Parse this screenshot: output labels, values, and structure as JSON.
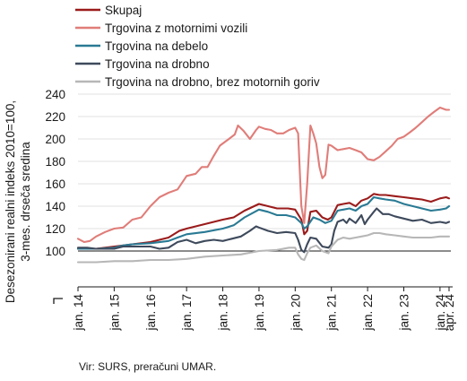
{
  "chart_data": {
    "type": "line",
    "ylabel_lines": [
      "Desezonirani realni indeks 2010=100,",
      "3-mes. drseča sredina"
    ],
    "ylim": [
      80,
      240
    ],
    "yticks": [
      100,
      120,
      140,
      160,
      180,
      200,
      220,
      240
    ],
    "y_axis_break": true,
    "x_tick_labels": [
      "jan. 14",
      "jan. 15",
      "jan. 16",
      "jan. 17",
      "jan. 18",
      "jan. 19",
      "jan. 20",
      "jan. 21",
      "jan. 22",
      "jan. 23",
      "jan. 24",
      "apr. 24"
    ],
    "x_tick_positions": [
      2014.0,
      2015.0,
      2016.0,
      2017.0,
      2018.0,
      2019.0,
      2020.0,
      2021.0,
      2022.0,
      2023.0,
      2024.0,
      2024.25
    ],
    "xlim": [
      2014.0,
      2024.3
    ],
    "grid": "horizontal",
    "legend_position": "top-left",
    "source": "Vir: SURS, preračuni UMAR.",
    "series": [
      {
        "name": "Skupaj",
        "color": "#9b1b1b",
        "points": [
          [
            2014.0,
            102
          ],
          [
            2014.5,
            102
          ],
          [
            2015.0,
            104
          ],
          [
            2015.5,
            106
          ],
          [
            2016.0,
            108
          ],
          [
            2016.5,
            112
          ],
          [
            2016.8,
            118
          ],
          [
            2017.0,
            120
          ],
          [
            2017.5,
            124
          ],
          [
            2018.0,
            128
          ],
          [
            2018.3,
            130
          ],
          [
            2018.6,
            136
          ],
          [
            2019.0,
            142
          ],
          [
            2019.25,
            140
          ],
          [
            2019.5,
            138
          ],
          [
            2019.8,
            138
          ],
          [
            2020.0,
            137
          ],
          [
            2020.17,
            128
          ],
          [
            2020.25,
            115
          ],
          [
            2020.33,
            118
          ],
          [
            2020.42,
            135
          ],
          [
            2020.58,
            136
          ],
          [
            2020.75,
            130
          ],
          [
            2020.9,
            128
          ],
          [
            2021.0,
            130
          ],
          [
            2021.17,
            141
          ],
          [
            2021.33,
            142
          ],
          [
            2021.5,
            143
          ],
          [
            2021.67,
            140
          ],
          [
            2021.83,
            145
          ],
          [
            2022.0,
            147
          ],
          [
            2022.17,
            151
          ],
          [
            2022.33,
            150
          ],
          [
            2022.5,
            150
          ],
          [
            2022.75,
            149
          ],
          [
            2023.0,
            148
          ],
          [
            2023.25,
            147
          ],
          [
            2023.5,
            146
          ],
          [
            2023.75,
            144
          ],
          [
            2024.0,
            147
          ],
          [
            2024.17,
            148
          ],
          [
            2024.25,
            147
          ]
        ]
      },
      {
        "name": "Trgovina z motornimi vozili",
        "color": "#e07d79",
        "points": [
          [
            2014.0,
            111
          ],
          [
            2014.17,
            108
          ],
          [
            2014.33,
            109
          ],
          [
            2014.5,
            113
          ],
          [
            2014.75,
            117
          ],
          [
            2015.0,
            120
          ],
          [
            2015.25,
            121
          ],
          [
            2015.5,
            128
          ],
          [
            2015.75,
            130
          ],
          [
            2016.0,
            140
          ],
          [
            2016.25,
            148
          ],
          [
            2016.5,
            152
          ],
          [
            2016.75,
            155
          ],
          [
            2017.0,
            167
          ],
          [
            2017.25,
            169
          ],
          [
            2017.42,
            175
          ],
          [
            2017.58,
            175
          ],
          [
            2017.75,
            185
          ],
          [
            2017.92,
            194
          ],
          [
            2018.0,
            196
          ],
          [
            2018.17,
            200
          ],
          [
            2018.33,
            204
          ],
          [
            2018.42,
            212
          ],
          [
            2018.58,
            207
          ],
          [
            2018.75,
            200
          ],
          [
            2018.92,
            208
          ],
          [
            2019.0,
            211
          ],
          [
            2019.17,
            209
          ],
          [
            2019.33,
            208
          ],
          [
            2019.5,
            205
          ],
          [
            2019.67,
            205
          ],
          [
            2019.83,
            208
          ],
          [
            2020.0,
            210
          ],
          [
            2020.08,
            205
          ],
          [
            2020.17,
            140
          ],
          [
            2020.25,
            125
          ],
          [
            2020.33,
            160
          ],
          [
            2020.42,
            212
          ],
          [
            2020.5,
            205
          ],
          [
            2020.58,
            196
          ],
          [
            2020.67,
            175
          ],
          [
            2020.75,
            165
          ],
          [
            2020.83,
            168
          ],
          [
            2020.92,
            195
          ],
          [
            2021.0,
            194
          ],
          [
            2021.17,
            190
          ],
          [
            2021.33,
            191
          ],
          [
            2021.5,
            192
          ],
          [
            2021.67,
            190
          ],
          [
            2021.83,
            188
          ],
          [
            2022.0,
            182
          ],
          [
            2022.17,
            181
          ],
          [
            2022.33,
            184
          ],
          [
            2022.5,
            189
          ],
          [
            2022.67,
            194
          ],
          [
            2022.83,
            200
          ],
          [
            2023.0,
            202
          ],
          [
            2023.17,
            206
          ],
          [
            2023.33,
            210
          ],
          [
            2023.5,
            215
          ],
          [
            2023.67,
            220
          ],
          [
            2023.83,
            224
          ],
          [
            2024.0,
            228
          ],
          [
            2024.17,
            226
          ],
          [
            2024.25,
            226
          ]
        ]
      },
      {
        "name": "Trgovina na debelo",
        "color": "#2a7a94",
        "points": [
          [
            2014.0,
            102
          ],
          [
            2014.5,
            102
          ],
          [
            2015.0,
            103
          ],
          [
            2015.25,
            105
          ],
          [
            2015.5,
            106
          ],
          [
            2016.0,
            107
          ],
          [
            2016.5,
            109
          ],
          [
            2016.75,
            112
          ],
          [
            2017.0,
            115
          ],
          [
            2017.5,
            117
          ],
          [
            2018.0,
            120
          ],
          [
            2018.3,
            123
          ],
          [
            2018.6,
            130
          ],
          [
            2019.0,
            137
          ],
          [
            2019.25,
            135
          ],
          [
            2019.5,
            132
          ],
          [
            2019.75,
            132
          ],
          [
            2020.0,
            130
          ],
          [
            2020.17,
            125
          ],
          [
            2020.25,
            120
          ],
          [
            2020.33,
            122
          ],
          [
            2020.5,
            130
          ],
          [
            2020.67,
            128
          ],
          [
            2020.83,
            125
          ],
          [
            2021.0,
            127
          ],
          [
            2021.17,
            136
          ],
          [
            2021.33,
            137
          ],
          [
            2021.5,
            138
          ],
          [
            2021.67,
            136
          ],
          [
            2021.83,
            140
          ],
          [
            2022.0,
            142
          ],
          [
            2022.17,
            148
          ],
          [
            2022.33,
            147
          ],
          [
            2022.5,
            146
          ],
          [
            2022.75,
            145
          ],
          [
            2023.0,
            142
          ],
          [
            2023.25,
            140
          ],
          [
            2023.5,
            138
          ],
          [
            2023.75,
            136
          ],
          [
            2024.0,
            137
          ],
          [
            2024.17,
            138
          ],
          [
            2024.25,
            140
          ]
        ]
      },
      {
        "name": "Trgovina na drobno",
        "color": "#3e4a5c",
        "points": [
          [
            2014.0,
            103
          ],
          [
            2014.25,
            103
          ],
          [
            2014.5,
            102
          ],
          [
            2015.0,
            102
          ],
          [
            2015.25,
            104
          ],
          [
            2015.5,
            104
          ],
          [
            2016.0,
            104
          ],
          [
            2016.25,
            102
          ],
          [
            2016.5,
            103
          ],
          [
            2016.75,
            108
          ],
          [
            2017.0,
            110
          ],
          [
            2017.25,
            107
          ],
          [
            2017.5,
            109
          ],
          [
            2017.75,
            110
          ],
          [
            2018.0,
            109
          ],
          [
            2018.25,
            111
          ],
          [
            2018.5,
            113
          ],
          [
            2018.75,
            118
          ],
          [
            2018.92,
            122
          ],
          [
            2019.0,
            121
          ],
          [
            2019.25,
            118
          ],
          [
            2019.5,
            116
          ],
          [
            2019.75,
            117
          ],
          [
            2020.0,
            116
          ],
          [
            2020.08,
            110
          ],
          [
            2020.17,
            101
          ],
          [
            2020.25,
            99
          ],
          [
            2020.33,
            106
          ],
          [
            2020.42,
            112
          ],
          [
            2020.58,
            111
          ],
          [
            2020.75,
            104
          ],
          [
            2020.92,
            103
          ],
          [
            2021.0,
            106
          ],
          [
            2021.08,
            118
          ],
          [
            2021.17,
            126
          ],
          [
            2021.33,
            128
          ],
          [
            2021.42,
            125
          ],
          [
            2021.5,
            129
          ],
          [
            2021.67,
            125
          ],
          [
            2021.83,
            132
          ],
          [
            2021.92,
            124
          ],
          [
            2022.0,
            128
          ],
          [
            2022.17,
            135
          ],
          [
            2022.25,
            138
          ],
          [
            2022.42,
            133
          ],
          [
            2022.58,
            133
          ],
          [
            2022.75,
            131
          ],
          [
            2023.0,
            129
          ],
          [
            2023.25,
            127
          ],
          [
            2023.5,
            128
          ],
          [
            2023.75,
            125
          ],
          [
            2024.0,
            126
          ],
          [
            2024.17,
            125
          ],
          [
            2024.25,
            126
          ]
        ]
      },
      {
        "name": "Trgovina na drobno, brez motornih goriv",
        "color": "#b7b7b7",
        "points": [
          [
            2014.0,
            90
          ],
          [
            2014.5,
            90
          ],
          [
            2015.0,
            91
          ],
          [
            2015.5,
            91
          ],
          [
            2016.0,
            92
          ],
          [
            2016.5,
            92
          ],
          [
            2017.0,
            93
          ],
          [
            2017.5,
            95
          ],
          [
            2018.0,
            96
          ],
          [
            2018.5,
            97
          ],
          [
            2019.0,
            100
          ],
          [
            2019.5,
            101
          ],
          [
            2019.83,
            103
          ],
          [
            2020.0,
            103
          ],
          [
            2020.08,
            97
          ],
          [
            2020.17,
            93
          ],
          [
            2020.25,
            92
          ],
          [
            2020.33,
            98
          ],
          [
            2020.42,
            103
          ],
          [
            2020.58,
            105
          ],
          [
            2020.75,
            100
          ],
          [
            2020.92,
            98
          ],
          [
            2021.0,
            104
          ],
          [
            2021.17,
            110
          ],
          [
            2021.33,
            112
          ],
          [
            2021.5,
            111
          ],
          [
            2021.67,
            112
          ],
          [
            2021.83,
            113
          ],
          [
            2022.0,
            114
          ],
          [
            2022.17,
            116
          ],
          [
            2022.33,
            116
          ],
          [
            2022.5,
            115
          ],
          [
            2022.75,
            114
          ],
          [
            2023.0,
            113
          ],
          [
            2023.25,
            112
          ],
          [
            2023.5,
            112
          ],
          [
            2023.75,
            112
          ],
          [
            2024.0,
            113
          ],
          [
            2024.17,
            113
          ],
          [
            2024.25,
            113
          ]
        ]
      }
    ]
  }
}
